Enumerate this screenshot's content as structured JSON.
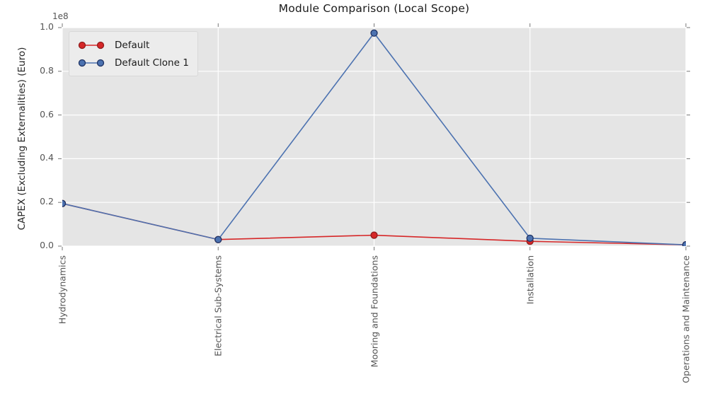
{
  "chart_data": {
    "type": "line",
    "title": "Module Comparison (Local Scope)",
    "ylabel": "CAPEX (Excluding Externalities) (Euro)",
    "xlabel": "",
    "offset_text": "1e8",
    "categories": [
      "Hydrodynamics",
      "Electrical Sub-Systems",
      "Mooring and Foundations",
      "Installation",
      "Operations and Maintenance"
    ],
    "series": [
      {
        "name": "Default",
        "color": "#d62728",
        "marker_edge": "#8f1d1d",
        "values": [
          19500000,
          3000000,
          5000000,
          2200000,
          600000
        ]
      },
      {
        "name": "Default Clone 1",
        "color": "#4c72b0",
        "marker_edge": "#1e3263",
        "values": [
          19500000,
          3000000,
          97500000,
          3600000,
          600000
        ]
      }
    ],
    "ylim": [
      0,
      100000000
    ],
    "yticks": [
      "0.0",
      "0.2",
      "0.4",
      "0.6",
      "0.8",
      "1.0"
    ],
    "grid": true,
    "legend_position": "upper left",
    "plot_bg": "#e5e5e5",
    "grid_color": "#ffffff",
    "tick_color": "#777777"
  }
}
